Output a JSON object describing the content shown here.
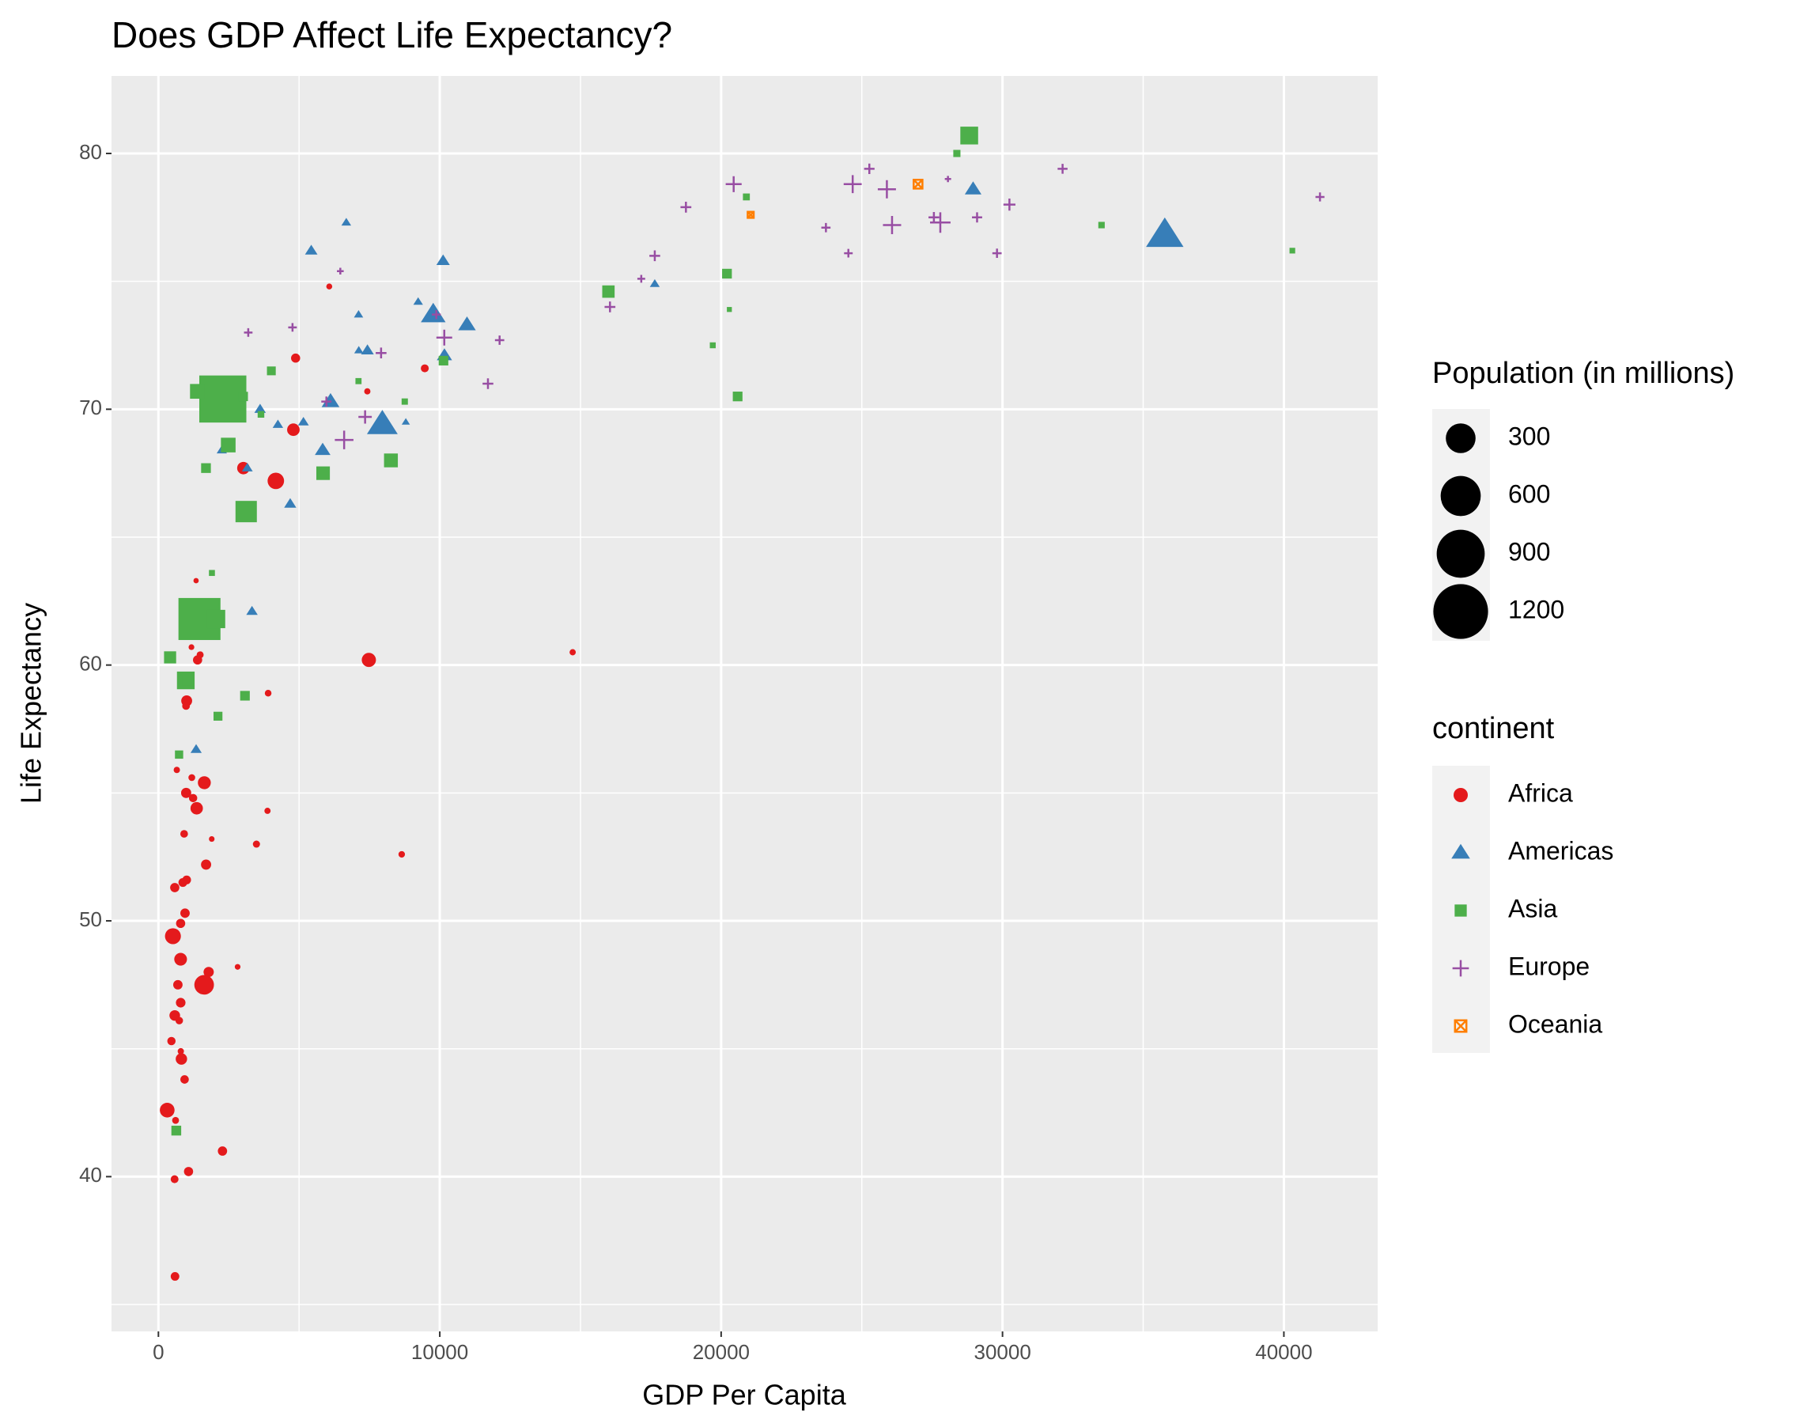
{
  "chart_data": {
    "type": "scatter",
    "title": "Does GDP Affect Life Expectancy?",
    "x_label": "GDP Per Capita",
    "y_label": "Life Expectancy",
    "xlim": [
      -1667,
      43333
    ],
    "ylim": [
      33.95,
      83.03
    ],
    "xticks": [
      0,
      10000,
      20000,
      30000,
      40000
    ],
    "yticks": [
      40,
      50,
      60,
      70,
      80
    ],
    "grid": true,
    "size_legend_title": "Population (in millions)",
    "size_legend": [
      300,
      600,
      900,
      1200
    ],
    "size_max": 1230,
    "color_legend_title": "continent",
    "series": [
      {
        "name": "Africa",
        "color": "#E41A1C",
        "shape": "circle",
        "x": [
          4797,
          2277,
          1233,
          8647,
          946,
          463,
          1694,
          741,
          1004,
          1174,
          312,
          3484,
          1786,
          1895,
          4173,
          2815,
          914,
          516,
          14723,
          654,
          1005,
          869,
          796,
          1360,
          1187,
          610,
          9467,
          986,
          692,
          790,
          1483,
          7425,
          3020,
          581,
          3900,
          581,
          1625,
          6072,
          590,
          1339,
          1392,
          575,
          930,
          7479,
          1632,
          3877,
          789,
          982,
          4876,
          817,
          1071,
          792
        ],
        "values": [
          69.2,
          41.0,
          54.8,
          52.6,
          50.3,
          45.3,
          52.2,
          46.1,
          51.6,
          60.7,
          42.6,
          53.0,
          48.0,
          53.2,
          67.2,
          48.2,
          53.4,
          49.4,
          60.5,
          55.9,
          58.6,
          51.5,
          44.9,
          54.4,
          55.6,
          42.2,
          71.6,
          55.0,
          47.5,
          49.9,
          60.4,
          70.7,
          67.7,
          46.3,
          58.9,
          51.3,
          47.5,
          74.8,
          36.1,
          63.3,
          60.2,
          39.9,
          43.8,
          60.2,
          55.4,
          54.3,
          48.5,
          58.4,
          72.0,
          44.6,
          40.2,
          46.8
        ],
        "sizes": [
          29.1,
          9.9,
          6.1,
          1.5,
          10.4,
          6.1,
          14.2,
          3.7,
          7.6,
          0.5,
          47.8,
          2.8,
          14.6,
          0.4,
          66.1,
          0.44,
          4.1,
          59.9,
          1.1,
          1.2,
          18.4,
          8.0,
          1.2,
          28.3,
          2.0,
          2.2,
          4.8,
          14.2,
          10.4,
          9.4,
          2.4,
          1.1,
          28.5,
          16.6,
          1.8,
          9.7,
          106.2,
          0.7,
          7.2,
          0.15,
          9.5,
          4.6,
          6.6,
          42.8,
          32.2,
          1.05,
          30.7,
          4.3,
          9.2,
          21.2,
          9.4,
          11.4
        ]
      },
      {
        "name": "Americas",
        "color": "#377EB8",
        "shape": "triangle",
        "x": [
          10967,
          3326,
          7958,
          28955,
          10118,
          6117,
          6677,
          5432,
          3614,
          7429,
          5154,
          4684,
          1341,
          3160,
          7122,
          9767,
          2253,
          7114,
          4247,
          5838,
          17641,
          8793,
          35767,
          9231,
          10165
        ],
        "values": [
          73.3,
          62.1,
          69.4,
          78.6,
          75.8,
          70.3,
          77.3,
          76.2,
          70.0,
          72.3,
          69.5,
          66.3,
          56.7,
          67.7,
          72.3,
          73.7,
          68.4,
          73.7,
          69.4,
          68.4,
          74.9,
          69.5,
          76.8,
          74.2,
          72.1
        ],
        "sizes": [
          36.2,
          7.7,
          168.5,
          30.3,
          14.6,
          37.4,
          3.5,
          11.0,
          7.8,
          11.9,
          5.8,
          9.8,
          7.0,
          5.9,
          2.5,
          95.9,
          4.6,
          2.7,
          5.2,
          24.7,
          3.8,
          1.1,
          272.9,
          3.3,
          22.8
        ]
      },
      {
        "name": "Asia",
        "color": "#4DAF4A",
        "shape": "square",
        "x": [
          635,
          20292,
          973,
          734,
          2289,
          28378,
          1459,
          3119,
          8264,
          3076,
          20897,
          28817,
          3645,
          1691,
          15994,
          40301,
          8755,
          10132,
          1902,
          415,
          1011,
          19702,
          2049,
          2482,
          20586,
          33519,
          3016,
          4014,
          20207,
          5853,
          1385,
          7111,
          2117
        ],
        "values": [
          41.8,
          73.9,
          59.4,
          56.5,
          70.4,
          80.0,
          61.8,
          66.0,
          68.0,
          58.8,
          78.3,
          80.7,
          69.8,
          67.7,
          74.6,
          76.2,
          70.3,
          71.9,
          63.6,
          60.3,
          59.4,
          72.5,
          61.8,
          68.6,
          70.5,
          77.2,
          70.5,
          71.5,
          75.3,
          67.5,
          70.7,
          71.1,
          58.0
        ],
        "sizes": [
          22.2,
          0.6,
          123.3,
          11.8,
          1230,
          6.5,
          959,
          199.3,
          63.5,
          20.8,
          5.5,
          125.6,
          4.5,
          21.6,
          46.2,
          1.8,
          3.4,
          20.5,
          2.5,
          43.2,
          23.0,
          2.3,
          135.6,
          75.0,
          21.2,
          3.8,
          18.7,
          15.1,
          21.6,
          60.1,
          76.0,
          2.8,
          15.8
        ]
      },
      {
        "name": "Europe",
        "color": "#984EA3",
        "shape": "plus",
        "x": [
          3193,
          29096,
          27561,
          4766,
          5970,
          9876,
          16049,
          29804,
          23724,
          25890,
          27789,
          18748,
          11712,
          28061,
          24522,
          24675,
          6465,
          30246,
          41283,
          10160,
          17641,
          7346,
          7914,
          12126,
          17161,
          20445,
          25267,
          32135,
          6601,
          26074
        ],
        "values": [
          73.0,
          77.5,
          77.5,
          73.2,
          70.3,
          73.7,
          74.0,
          76.1,
          77.1,
          78.6,
          77.3,
          77.9,
          71.0,
          79.0,
          76.1,
          78.8,
          75.4,
          78.0,
          78.3,
          72.8,
          76.0,
          69.7,
          72.2,
          72.7,
          75.1,
          78.8,
          79.4,
          79.4,
          68.8,
          77.2
        ],
        "sizes": [
          3.4,
          8.1,
          10.2,
          3.6,
          8.1,
          4.4,
          10.3,
          5.3,
          5.1,
          58.6,
          82.0,
          10.5,
          10.2,
          0.27,
          3.7,
          57.5,
          0.6,
          15.6,
          4.4,
          38.7,
          10.2,
          22.6,
          10.3,
          5.4,
          2.0,
          39.9,
          8.9,
          7.2,
          63.0,
          58.8
        ]
      },
      {
        "name": "Oceania",
        "color": "#FF7F00",
        "shape": "square-cross",
        "x": [
          26998,
          21050
        ],
        "values": [
          78.8,
          77.6
        ],
        "sizes": [
          18.6,
          3.7
        ]
      }
    ]
  }
}
